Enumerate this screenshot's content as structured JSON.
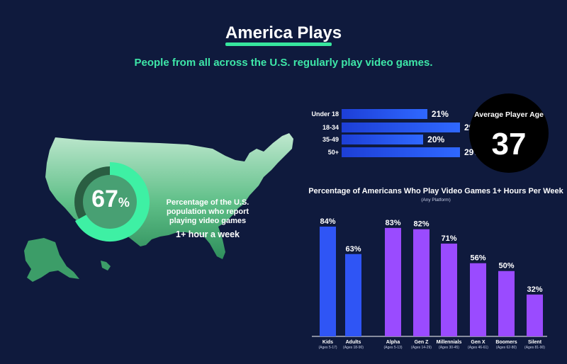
{
  "header": {
    "title": "America Plays",
    "subtitle": "People from all across the U.S. regularly play video games."
  },
  "colors": {
    "background": "#0f1a3d",
    "accent_green": "#3ee6a8",
    "blue_bar": "#2f55f5",
    "purple_bar": "#9a4bff"
  },
  "map_stat": {
    "value": "67",
    "symbol": "%",
    "description": "Percentage of the U.S. population who report playing video games",
    "highlight": "1+ hour a week",
    "fraction": 0.67
  },
  "average_age": {
    "label": "Average Player Age",
    "value": "37"
  },
  "age_chart": {
    "type": "bar",
    "orientation": "horizontal",
    "categories": [
      "Under 18",
      "18-34",
      "35-49",
      "50+"
    ],
    "values": [
      21,
      29,
      20,
      29
    ],
    "value_labels": [
      "21%",
      "29%",
      "20%",
      "29%"
    ],
    "xlim": [
      0,
      29
    ]
  },
  "chart_data": {
    "type": "bar",
    "title": "Percentage of Americans Who Play Video Games 1+ Hours Per Week",
    "subtitle": "(Any Platform)",
    "categories": [
      "Kids",
      "Adults",
      "Alpha",
      "Gen Z",
      "Millennials",
      "Gen X",
      "Boomers",
      "Silent"
    ],
    "category_sublabels": [
      "(Ages 5-17)",
      "(Ages 18-90)",
      "(Ages 5-13)",
      "(Ages 14-29)",
      "(Ages 30-45)",
      "(Ages 46-61)",
      "(Ages 62-80)",
      "(Ages 81-90)"
    ],
    "values": [
      84,
      63,
      83,
      82,
      71,
      56,
      50,
      32
    ],
    "value_labels": [
      "84%",
      "63%",
      "83%",
      "82%",
      "71%",
      "56%",
      "50%",
      "32%"
    ],
    "bar_colors": [
      "#2f55f5",
      "#2f55f5",
      "#9a4bff",
      "#9a4bff",
      "#9a4bff",
      "#9a4bff",
      "#9a4bff",
      "#9a4bff"
    ],
    "ylim": [
      0,
      84
    ]
  }
}
